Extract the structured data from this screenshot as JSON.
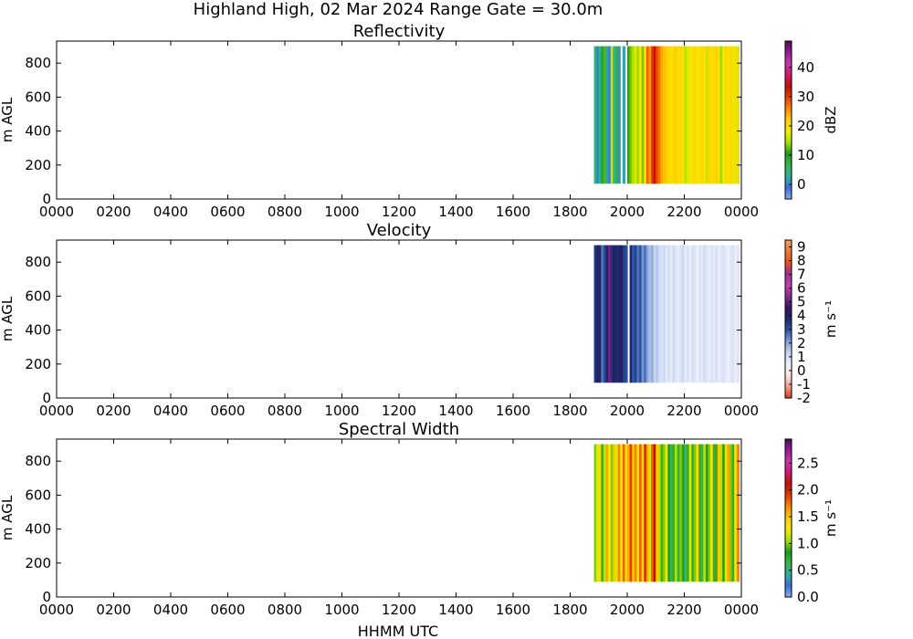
{
  "figure": {
    "title": "Highland High, 02 Mar 2024 Range Gate = 30.0m",
    "xlabel": "HHMM UTC"
  },
  "chart_data": [
    {
      "type": "heatmap",
      "title": "Reflectivity",
      "ylabel": "m AGL",
      "xlabel": "",
      "x_ticks": [
        "0000",
        "0200",
        "0400",
        "0600",
        "0800",
        "1000",
        "1200",
        "1400",
        "1600",
        "1800",
        "2000",
        "2200",
        "0000"
      ],
      "y_ticks": [
        0,
        200,
        400,
        600,
        800
      ],
      "ylim": [
        0,
        930
      ],
      "data_extent_y": [
        90,
        900
      ],
      "data_extent_time_hhmm": [
        "1850",
        "2355"
      ],
      "colorbar": {
        "label": "dBZ",
        "vmin": -5,
        "vmax": 49,
        "ticks": [
          0,
          10,
          20,
          30,
          40
        ],
        "tick_labels": [
          "0",
          "10",
          "20",
          "30",
          "40"
        ],
        "colors": [
          "#8aa8f0",
          "#3a6fd8",
          "#2fb0a0",
          "#39b54a",
          "#1a9a1a",
          "#a8e000",
          "#f3ee00",
          "#ffd000",
          "#ff8a00",
          "#e83d00",
          "#c41000",
          "#d4146e",
          "#c43aa8",
          "#9a1a9a",
          "#4a1050"
        ]
      },
      "data_columns": [
        {
          "time_hhmm": "1850",
          "value": 4
        },
        {
          "time_hhmm": "1855",
          "value": 0
        },
        {
          "time_hhmm": "1900",
          "value": 3
        },
        {
          "time_hhmm": "1905",
          "value": 9
        },
        {
          "time_hhmm": "1910",
          "value": 12
        },
        {
          "time_hhmm": "1915",
          "value": 2
        },
        {
          "time_hhmm": "1920",
          "value": 0
        },
        {
          "time_hhmm": "1925",
          "value": 16
        },
        {
          "time_hhmm": "1930",
          "value": 3
        },
        {
          "time_hhmm": "1935",
          "value": 7
        },
        {
          "time_hhmm": "1940",
          "value": 1
        },
        {
          "time_hhmm": "1950",
          "value": 2
        },
        {
          "time_hhmm": "2000",
          "value": 11
        },
        {
          "time_hhmm": "2005",
          "value": 13
        },
        {
          "time_hhmm": "2010",
          "value": 15
        },
        {
          "time_hhmm": "2015",
          "value": 17
        },
        {
          "time_hhmm": "2020",
          "value": 14
        },
        {
          "time_hhmm": "2025",
          "value": 19
        },
        {
          "time_hhmm": "2030",
          "value": 13
        },
        {
          "time_hhmm": "2035",
          "value": 20
        },
        {
          "time_hhmm": "2040",
          "value": 28
        },
        {
          "time_hhmm": "2045",
          "value": 25
        },
        {
          "time_hhmm": "2050",
          "value": 30
        },
        {
          "time_hhmm": "2055",
          "value": 34
        },
        {
          "time_hhmm": "2100",
          "value": 29
        },
        {
          "time_hhmm": "2105",
          "value": 27
        },
        {
          "time_hhmm": "2110",
          "value": 24
        },
        {
          "time_hhmm": "2115",
          "value": 23
        },
        {
          "time_hhmm": "2120",
          "value": 22
        },
        {
          "time_hhmm": "2125",
          "value": 21
        },
        {
          "time_hhmm": "2130",
          "value": 20
        },
        {
          "time_hhmm": "2135",
          "value": 21
        },
        {
          "time_hhmm": "2140",
          "value": 22
        },
        {
          "time_hhmm": "2145",
          "value": 20
        },
        {
          "time_hhmm": "2150",
          "value": 21
        },
        {
          "time_hhmm": "2155",
          "value": 20
        },
        {
          "time_hhmm": "2200",
          "value": 15
        },
        {
          "time_hhmm": "2205",
          "value": 17
        },
        {
          "time_hhmm": "2210",
          "value": 19
        },
        {
          "time_hhmm": "2215",
          "value": 20
        },
        {
          "time_hhmm": "2220",
          "value": 21
        },
        {
          "time_hhmm": "2225",
          "value": 19
        },
        {
          "time_hhmm": "2230",
          "value": 20
        },
        {
          "time_hhmm": "2235",
          "value": 21
        },
        {
          "time_hhmm": "2240",
          "value": 20
        },
        {
          "time_hhmm": "2245",
          "value": 16
        },
        {
          "time_hhmm": "2250",
          "value": 21
        },
        {
          "time_hhmm": "2255",
          "value": 20
        },
        {
          "time_hhmm": "2300",
          "value": 21
        },
        {
          "time_hhmm": "2305",
          "value": 22
        },
        {
          "time_hhmm": "2310",
          "value": 20
        },
        {
          "time_hhmm": "2315",
          "value": 14
        },
        {
          "time_hhmm": "2320",
          "value": 19
        },
        {
          "time_hhmm": "2325",
          "value": 21
        },
        {
          "time_hhmm": "2330",
          "value": 20
        },
        {
          "time_hhmm": "2335",
          "value": 21
        },
        {
          "time_hhmm": "2340",
          "value": 20
        },
        {
          "time_hhmm": "2345",
          "value": 17
        },
        {
          "time_hhmm": "2350",
          "value": 21
        }
      ]
    },
    {
      "type": "heatmap",
      "title": "Velocity",
      "ylabel": "m AGL",
      "xlabel": "",
      "x_ticks": [
        "0000",
        "0200",
        "0400",
        "0600",
        "0800",
        "1000",
        "1200",
        "1400",
        "1600",
        "1800",
        "2000",
        "2200",
        "0000"
      ],
      "y_ticks": [
        0,
        200,
        400,
        600,
        800
      ],
      "ylim": [
        0,
        930
      ],
      "data_extent_y": [
        90,
        900
      ],
      "data_extent_time_hhmm": [
        "1850",
        "2355"
      ],
      "colorbar": {
        "label": "m s⁻¹",
        "vmin": -2,
        "vmax": 9.5,
        "ticks": [
          -2,
          -1,
          0,
          1,
          2,
          3,
          4,
          5,
          6,
          7,
          8,
          9
        ],
        "tick_labels": [
          "-2",
          "-1",
          "0",
          "1",
          "2",
          "3",
          "4",
          "5",
          "6",
          "7",
          "8",
          "9"
        ],
        "colors": [
          "#d83a10",
          "#f0a090",
          "#fbe3e0",
          "#eef2fb",
          "#c8d6f0",
          "#7e9fd8",
          "#2f58a8",
          "#1a2a6a",
          "#3a1060",
          "#8a2a90",
          "#c040b0",
          "#a02aa0",
          "#e8501a",
          "#f07a30",
          "#f5a060"
        ]
      },
      "data_columns": [
        {
          "time_hhmm": "1850",
          "value": 3.5
        },
        {
          "time_hhmm": "1855",
          "value": 4.2
        },
        {
          "time_hhmm": "1900",
          "value": 3.8
        },
        {
          "time_hhmm": "1905",
          "value": 2.6
        },
        {
          "time_hhmm": "1910",
          "value": 3.2
        },
        {
          "time_hhmm": "1915",
          "value": 4.0
        },
        {
          "time_hhmm": "1920",
          "value": 5.2
        },
        {
          "time_hhmm": "1925",
          "value": 3.6
        },
        {
          "time_hhmm": "1930",
          "value": 4.1
        },
        {
          "time_hhmm": "1935",
          "value": 3.7
        },
        {
          "time_hhmm": "1940",
          "value": 3.9
        },
        {
          "time_hhmm": "1945",
          "value": 4.3
        },
        {
          "time_hhmm": "1950",
          "value": 3.4
        },
        {
          "time_hhmm": "1955",
          "value": 3.1
        },
        {
          "time_hhmm": "2005",
          "value": 3.8
        },
        {
          "time_hhmm": "2010",
          "value": 2.9
        },
        {
          "time_hhmm": "2015",
          "value": 3.3
        },
        {
          "time_hhmm": "2020",
          "value": 2.6
        },
        {
          "time_hhmm": "2025",
          "value": 3.0
        },
        {
          "time_hhmm": "2030",
          "value": 2.2
        },
        {
          "time_hhmm": "2035",
          "value": 2.7
        },
        {
          "time_hhmm": "2040",
          "value": 2.0
        },
        {
          "time_hhmm": "2045",
          "value": 1.6
        },
        {
          "time_hhmm": "2050",
          "value": 1.9
        },
        {
          "time_hhmm": "2055",
          "value": 1.3
        },
        {
          "time_hhmm": "2100",
          "value": 1.5
        },
        {
          "time_hhmm": "2105",
          "value": 1.1
        },
        {
          "time_hhmm": "2110",
          "value": 0.9
        },
        {
          "time_hhmm": "2115",
          "value": 1.2
        },
        {
          "time_hhmm": "2120",
          "value": 0.8
        },
        {
          "time_hhmm": "2125",
          "value": 1.0
        },
        {
          "time_hhmm": "2130",
          "value": 0.7
        },
        {
          "time_hhmm": "2135",
          "value": 1.1
        },
        {
          "time_hhmm": "2140",
          "value": 0.8
        },
        {
          "time_hhmm": "2145",
          "value": 0.6
        },
        {
          "time_hhmm": "2150",
          "value": 0.9
        },
        {
          "time_hhmm": "2155",
          "value": 1.2
        },
        {
          "time_hhmm": "2200",
          "value": 0.7
        },
        {
          "time_hhmm": "2205",
          "value": 0.9
        },
        {
          "time_hhmm": "2210",
          "value": 0.6
        },
        {
          "time_hhmm": "2215",
          "value": 1.0
        },
        {
          "time_hhmm": "2220",
          "value": 0.8
        },
        {
          "time_hhmm": "2225",
          "value": 0.5
        },
        {
          "time_hhmm": "2230",
          "value": 0.9
        },
        {
          "time_hhmm": "2235",
          "value": 0.7
        },
        {
          "time_hhmm": "2240",
          "value": 1.1
        },
        {
          "time_hhmm": "2245",
          "value": 0.8
        },
        {
          "time_hhmm": "2250",
          "value": 0.6
        },
        {
          "time_hhmm": "2255",
          "value": 0.9
        },
        {
          "time_hhmm": "2300",
          "value": 0.7
        },
        {
          "time_hhmm": "2305",
          "value": 1.0
        },
        {
          "time_hhmm": "2310",
          "value": 0.6
        },
        {
          "time_hhmm": "2315",
          "value": 0.8
        },
        {
          "time_hhmm": "2320",
          "value": 0.9
        },
        {
          "time_hhmm": "2325",
          "value": 0.7
        },
        {
          "time_hhmm": "2330",
          "value": 0.5
        },
        {
          "time_hhmm": "2335",
          "value": 0.8
        },
        {
          "time_hhmm": "2340",
          "value": 0.9
        },
        {
          "time_hhmm": "2345",
          "value": 0.6
        },
        {
          "time_hhmm": "2350",
          "value": 0.8
        }
      ]
    },
    {
      "type": "heatmap",
      "title": "Spectral Width",
      "ylabel": "m AGL",
      "xlabel": "HHMM UTC",
      "x_ticks": [
        "0000",
        "0200",
        "0400",
        "0600",
        "0800",
        "1000",
        "1200",
        "1400",
        "1600",
        "1800",
        "2000",
        "2200",
        "0000"
      ],
      "y_ticks": [
        0,
        200,
        400,
        600,
        800
      ],
      "ylim": [
        0,
        930
      ],
      "data_extent_y": [
        90,
        900
      ],
      "data_extent_time_hhmm": [
        "1850",
        "2355"
      ],
      "colorbar": {
        "label": "m s⁻¹",
        "vmin": 0,
        "vmax": 2.95,
        "ticks": [
          0.0,
          0.5,
          1.0,
          1.5,
          2.0,
          2.5
        ],
        "tick_labels": [
          "0.0",
          "0.5",
          "1.0",
          "1.5",
          "2.0",
          "2.5"
        ],
        "colors": [
          "#8aa8f0",
          "#3a6fd8",
          "#2fb0a0",
          "#39b54a",
          "#1a9a1a",
          "#a8e000",
          "#f3ee00",
          "#ffd000",
          "#ff8a00",
          "#e83d00",
          "#c41000",
          "#d4146e",
          "#c43aa8",
          "#9a1a9a",
          "#4a1050"
        ]
      },
      "data_columns": [
        {
          "time_hhmm": "1850",
          "value": 1.0
        },
        {
          "time_hhmm": "1855",
          "value": 1.2
        },
        {
          "time_hhmm": "1900",
          "value": 1.4
        },
        {
          "time_hhmm": "1905",
          "value": 0.9
        },
        {
          "time_hhmm": "1910",
          "value": 1.1
        },
        {
          "time_hhmm": "1915",
          "value": 1.6
        },
        {
          "time_hhmm": "1920",
          "value": 1.3
        },
        {
          "time_hhmm": "1925",
          "value": 1.0
        },
        {
          "time_hhmm": "1930",
          "value": 1.5
        },
        {
          "time_hhmm": "1935",
          "value": 1.2
        },
        {
          "time_hhmm": "1940",
          "value": 1.7
        },
        {
          "time_hhmm": "1945",
          "value": 1.3
        },
        {
          "time_hhmm": "1950",
          "value": 1.8
        },
        {
          "time_hhmm": "1955",
          "value": 1.4
        },
        {
          "time_hhmm": "2000",
          "value": 1.6
        },
        {
          "time_hhmm": "2005",
          "value": 1.9
        },
        {
          "time_hhmm": "2010",
          "value": 1.5
        },
        {
          "time_hhmm": "2015",
          "value": 1.7
        },
        {
          "time_hhmm": "2020",
          "value": 1.3
        },
        {
          "time_hhmm": "2025",
          "value": 1.8
        },
        {
          "time_hhmm": "2030",
          "value": 1.4
        },
        {
          "time_hhmm": "2035",
          "value": 2.0
        },
        {
          "time_hhmm": "2040",
          "value": 1.6
        },
        {
          "time_hhmm": "2045",
          "value": 1.2
        },
        {
          "time_hhmm": "2050",
          "value": 1.8
        },
        {
          "time_hhmm": "2055",
          "value": 2.1
        },
        {
          "time_hhmm": "2100",
          "value": 1.5
        },
        {
          "time_hhmm": "2105",
          "value": 1.1
        },
        {
          "time_hhmm": "2110",
          "value": 0.9
        },
        {
          "time_hhmm": "2115",
          "value": 1.0
        },
        {
          "time_hhmm": "2120",
          "value": 1.3
        },
        {
          "time_hhmm": "2125",
          "value": 0.8
        },
        {
          "time_hhmm": "2130",
          "value": 0.6
        },
        {
          "time_hhmm": "2135",
          "value": 0.9
        },
        {
          "time_hhmm": "2140",
          "value": 1.1
        },
        {
          "time_hhmm": "2145",
          "value": 0.7
        },
        {
          "time_hhmm": "2150",
          "value": 1.0
        },
        {
          "time_hhmm": "2155",
          "value": 0.8
        },
        {
          "time_hhmm": "2200",
          "value": 0.5
        },
        {
          "time_hhmm": "2205",
          "value": 0.9
        },
        {
          "time_hhmm": "2210",
          "value": 1.2
        },
        {
          "time_hhmm": "2215",
          "value": 0.7
        },
        {
          "time_hhmm": "2220",
          "value": 1.0
        },
        {
          "time_hhmm": "2225",
          "value": 1.4
        },
        {
          "time_hhmm": "2230",
          "value": 0.9
        },
        {
          "time_hhmm": "2235",
          "value": 0.6
        },
        {
          "time_hhmm": "2240",
          "value": 1.1
        },
        {
          "time_hhmm": "2245",
          "value": 0.8
        },
        {
          "time_hhmm": "2250",
          "value": 1.0
        },
        {
          "time_hhmm": "2255",
          "value": 1.3
        },
        {
          "time_hhmm": "2300",
          "value": 0.7
        },
        {
          "time_hhmm": "2305",
          "value": 0.9
        },
        {
          "time_hhmm": "2310",
          "value": 1.5
        },
        {
          "time_hhmm": "2315",
          "value": 1.1
        },
        {
          "time_hhmm": "2320",
          "value": 0.8
        },
        {
          "time_hhmm": "2325",
          "value": 1.2
        },
        {
          "time_hhmm": "2330",
          "value": 1.6
        },
        {
          "time_hhmm": "2335",
          "value": 1.0
        },
        {
          "time_hhmm": "2340",
          "value": 0.7
        },
        {
          "time_hhmm": "2345",
          "value": 1.3
        },
        {
          "time_hhmm": "2350",
          "value": 1.7
        }
      ]
    }
  ]
}
